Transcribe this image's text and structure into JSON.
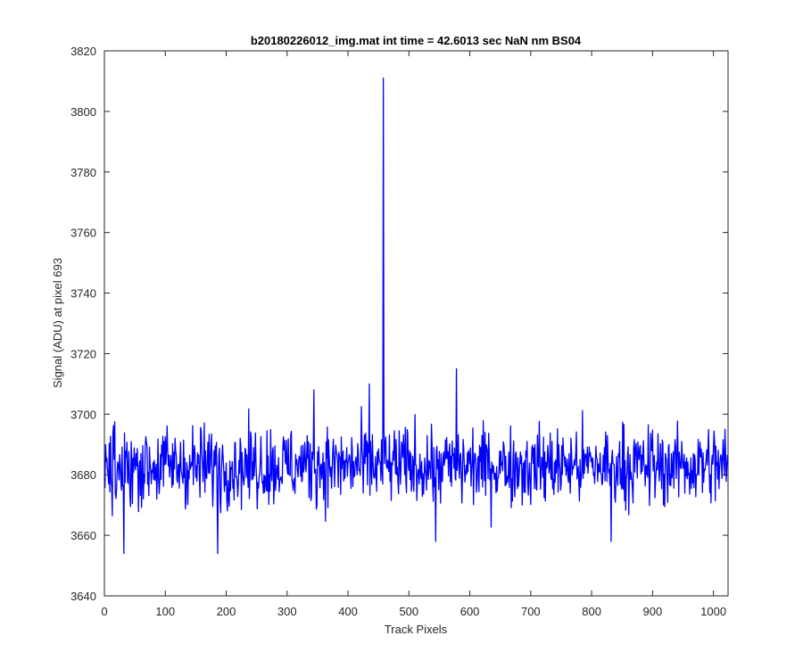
{
  "chart_data": {
    "type": "line",
    "title": "b20180226012_img.mat int time = 42.6013 sec  NaN nm BS04",
    "xlabel": "Track Pixels",
    "ylabel": "Signal (ADU) at pixel 693",
    "xlim": [
      0,
      1024
    ],
    "ylim": [
      3640,
      3820
    ],
    "xticks": [
      0,
      100,
      200,
      300,
      400,
      500,
      600,
      700,
      800,
      900,
      1000
    ],
    "yticks": [
      3640,
      3660,
      3680,
      3700,
      3720,
      3740,
      3760,
      3780,
      3800,
      3820
    ],
    "grid": false,
    "line_color": "#0000ff",
    "baseline": 3683,
    "noise_points": 1024,
    "notable_points": [
      {
        "x": 458,
        "y": 3811
      },
      {
        "x": 578,
        "y": 3715
      },
      {
        "x": 544,
        "y": 3658
      },
      {
        "x": 32,
        "y": 3654
      },
      {
        "x": 186,
        "y": 3654
      },
      {
        "x": 832,
        "y": 3658
      },
      {
        "x": 344,
        "y": 3708
      },
      {
        "x": 435,
        "y": 3710
      }
    ]
  }
}
